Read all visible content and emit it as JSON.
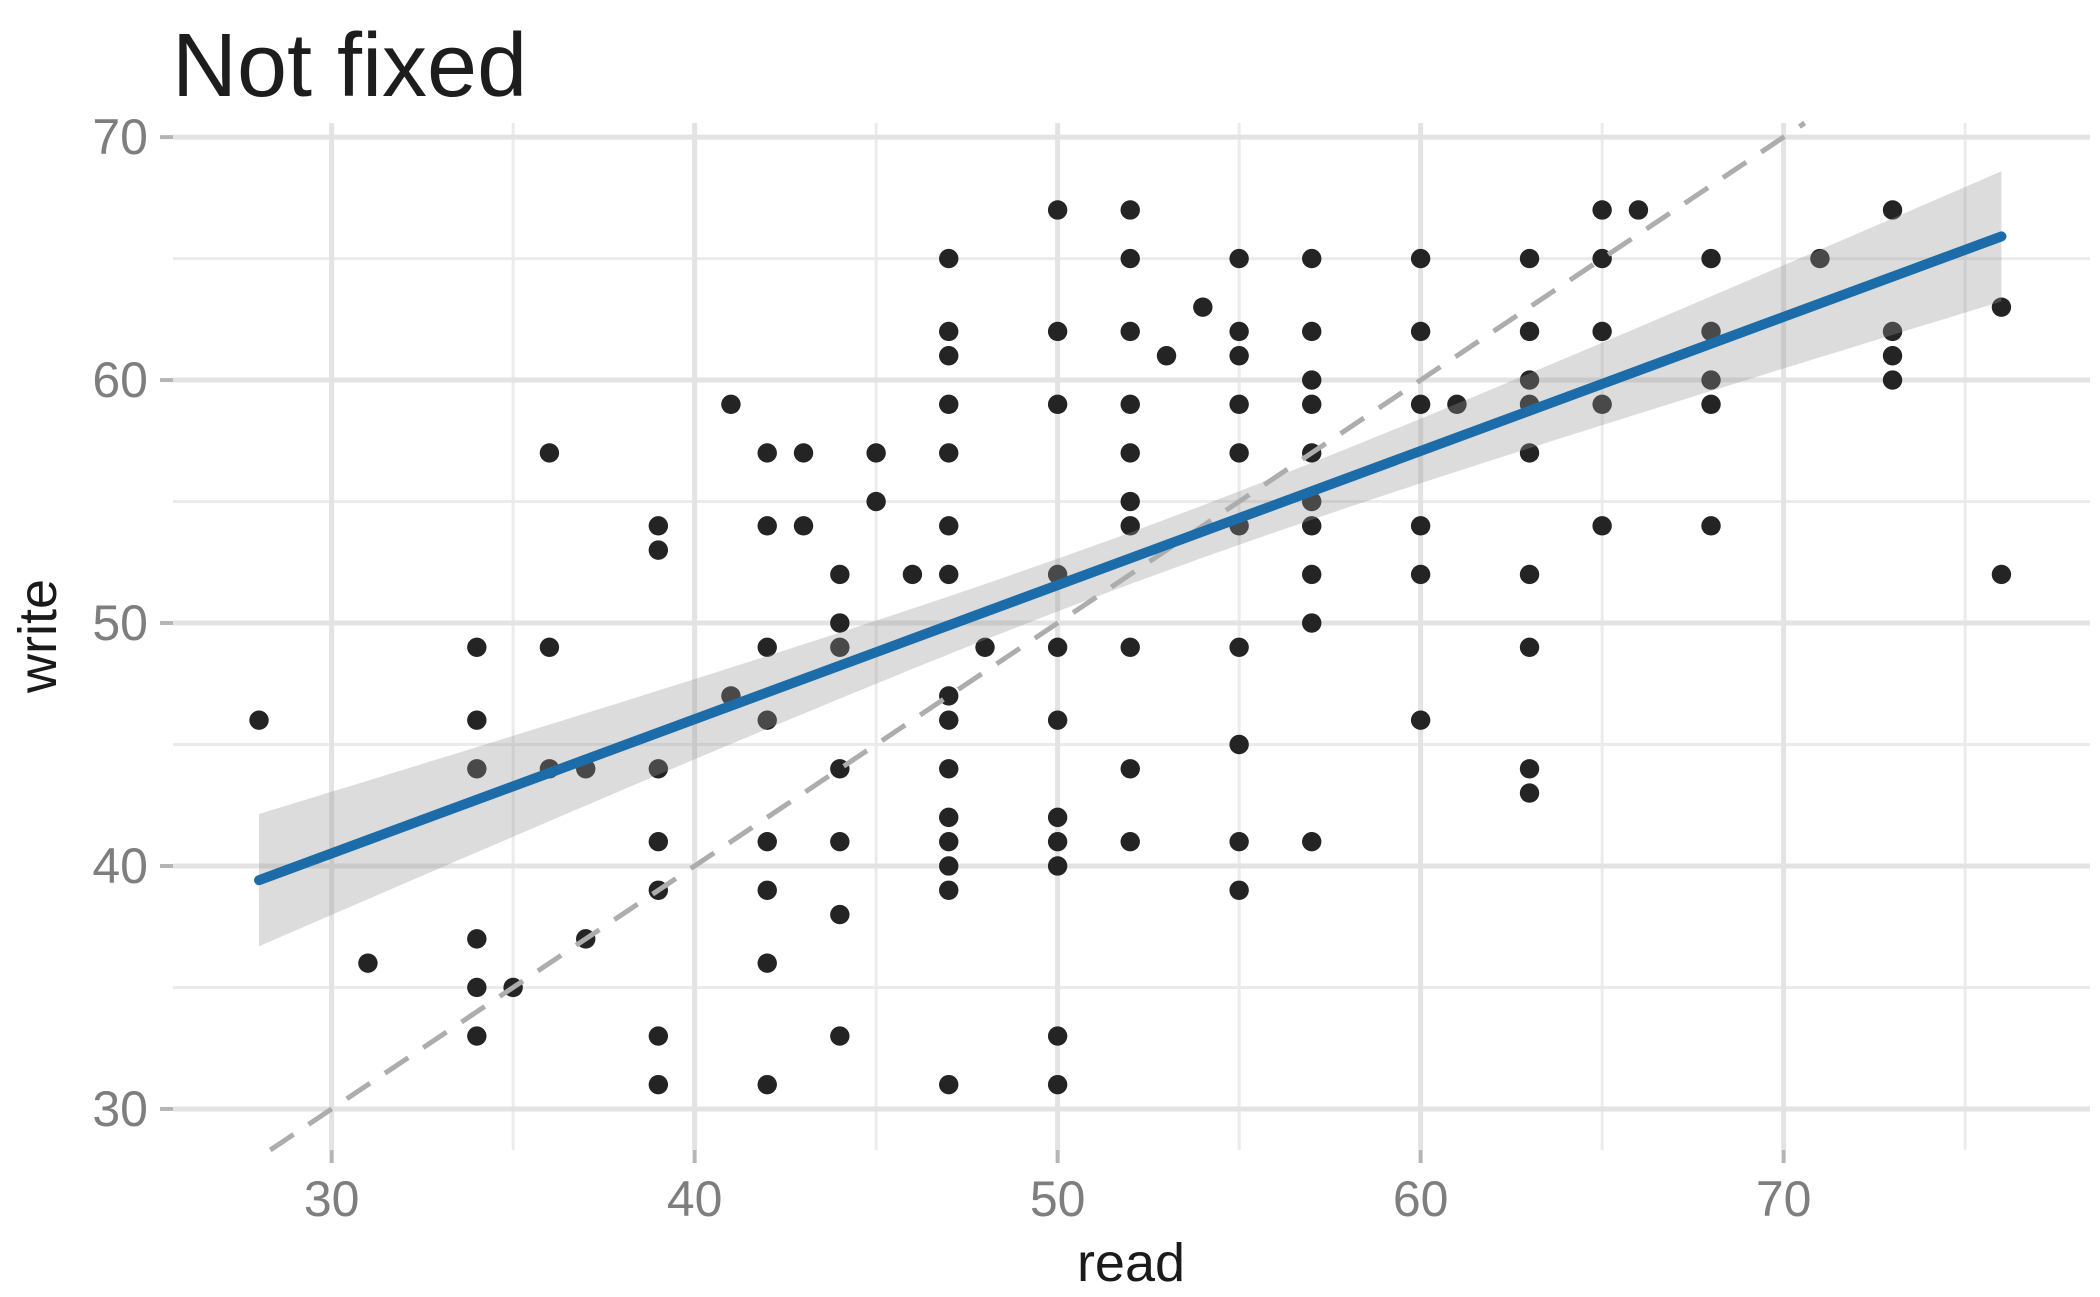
{
  "title": "Not fixed",
  "chart_data": {
    "type": "scatter",
    "title": "Not fixed",
    "xlabel": "read",
    "ylabel": "write",
    "x_breaks": [
      30,
      40,
      50,
      60,
      70
    ],
    "x_minor_breaks": [
      35,
      45,
      55,
      65,
      75
    ],
    "y_breaks": [
      30,
      40,
      50,
      60,
      70
    ],
    "y_minor_breaks": [
      35,
      45,
      55,
      65
    ],
    "xlim": [
      25.63,
      78.44
    ],
    "ylim": [
      28.31,
      70.58
    ],
    "grid": "on",
    "legend": "none",
    "points": [
      [
        50,
        67
      ],
      [
        52,
        67
      ],
      [
        65,
        67
      ],
      [
        66,
        67
      ],
      [
        73,
        67
      ],
      [
        47,
        65
      ],
      [
        52,
        65
      ],
      [
        55,
        65
      ],
      [
        57,
        65
      ],
      [
        60,
        65
      ],
      [
        63,
        65
      ],
      [
        65,
        65
      ],
      [
        68,
        65
      ],
      [
        71,
        65
      ],
      [
        54,
        63
      ],
      [
        76,
        63
      ],
      [
        47,
        62
      ],
      [
        50,
        62
      ],
      [
        52,
        62
      ],
      [
        55,
        62
      ],
      [
        57,
        62
      ],
      [
        60,
        62
      ],
      [
        63,
        62
      ],
      [
        65,
        62
      ],
      [
        68,
        62
      ],
      [
        73,
        62
      ],
      [
        47,
        61
      ],
      [
        53,
        61
      ],
      [
        55,
        61
      ],
      [
        73,
        61
      ],
      [
        57,
        60
      ],
      [
        63,
        60
      ],
      [
        68,
        60
      ],
      [
        73,
        60
      ],
      [
        41,
        59
      ],
      [
        47,
        59
      ],
      [
        50,
        59
      ],
      [
        52,
        59
      ],
      [
        55,
        59
      ],
      [
        57,
        59
      ],
      [
        60,
        59
      ],
      [
        61,
        59
      ],
      [
        63,
        59
      ],
      [
        65,
        59
      ],
      [
        68,
        59
      ],
      [
        36,
        57
      ],
      [
        42,
        57
      ],
      [
        43,
        57
      ],
      [
        45,
        57
      ],
      [
        47,
        57
      ],
      [
        52,
        57
      ],
      [
        55,
        57
      ],
      [
        57,
        57
      ],
      [
        63,
        57
      ],
      [
        45,
        55
      ],
      [
        52,
        55
      ],
      [
        57,
        55
      ],
      [
        39,
        54
      ],
      [
        42,
        54
      ],
      [
        43,
        54
      ],
      [
        47,
        54
      ],
      [
        52,
        54
      ],
      [
        55,
        54
      ],
      [
        57,
        54
      ],
      [
        60,
        54
      ],
      [
        65,
        54
      ],
      [
        68,
        54
      ],
      [
        39,
        53
      ],
      [
        44,
        52
      ],
      [
        46,
        52
      ],
      [
        47,
        52
      ],
      [
        50,
        52
      ],
      [
        57,
        52
      ],
      [
        60,
        52
      ],
      [
        63,
        52
      ],
      [
        76,
        52
      ],
      [
        44,
        50
      ],
      [
        57,
        50
      ],
      [
        34,
        49
      ],
      [
        36,
        49
      ],
      [
        42,
        49
      ],
      [
        44,
        49
      ],
      [
        48,
        49
      ],
      [
        50,
        49
      ],
      [
        52,
        49
      ],
      [
        55,
        49
      ],
      [
        63,
        49
      ],
      [
        41,
        47
      ],
      [
        47,
        47
      ],
      [
        28,
        46
      ],
      [
        34,
        46
      ],
      [
        42,
        46
      ],
      [
        47,
        46
      ],
      [
        50,
        46
      ],
      [
        60,
        46
      ],
      [
        55,
        45
      ],
      [
        34,
        44
      ],
      [
        36,
        44
      ],
      [
        37,
        44
      ],
      [
        39,
        44
      ],
      [
        44,
        44
      ],
      [
        47,
        44
      ],
      [
        52,
        44
      ],
      [
        63,
        44
      ],
      [
        63,
        43
      ],
      [
        47,
        42
      ],
      [
        50,
        42
      ],
      [
        39,
        41
      ],
      [
        42,
        41
      ],
      [
        44,
        41
      ],
      [
        47,
        41
      ],
      [
        50,
        41
      ],
      [
        52,
        41
      ],
      [
        55,
        41
      ],
      [
        57,
        41
      ],
      [
        47,
        40
      ],
      [
        50,
        40
      ],
      [
        39,
        39
      ],
      [
        42,
        39
      ],
      [
        47,
        39
      ],
      [
        55,
        39
      ],
      [
        44,
        38
      ],
      [
        34,
        37
      ],
      [
        37,
        37
      ],
      [
        31,
        36
      ],
      [
        42,
        36
      ],
      [
        34,
        35
      ],
      [
        35,
        35
      ],
      [
        34,
        33
      ],
      [
        39,
        33
      ],
      [
        44,
        33
      ],
      [
        50,
        33
      ],
      [
        39,
        31
      ],
      [
        42,
        31
      ],
      [
        47,
        31
      ],
      [
        50,
        31
      ]
    ],
    "smooth": {
      "method": "lm",
      "intercept": 23.96,
      "slope": 0.552,
      "x_range": [
        28,
        76
      ],
      "ci": {
        "t_times_s": 14.97,
        "inv_n": 0.005,
        "x_mean": 52.23,
        "sxx": 20900
      }
    },
    "identity_line": {
      "slope": 1,
      "intercept": 0,
      "style": "dashed"
    },
    "colors": {
      "point": "#242424",
      "smooth_line": "#1b6ca8",
      "ribbon": "rgba(150,150,150,0.33)",
      "identity_dashed": "#adadad",
      "grid_major": "#e3e3e3",
      "grid_minor": "#ebebeb",
      "tick_mark": "#b5b5b5",
      "tick_label": "#7e7e7e",
      "axis_title": "#1a1a1a",
      "title": "#1d1d1d",
      "background": "#ffffff"
    }
  }
}
